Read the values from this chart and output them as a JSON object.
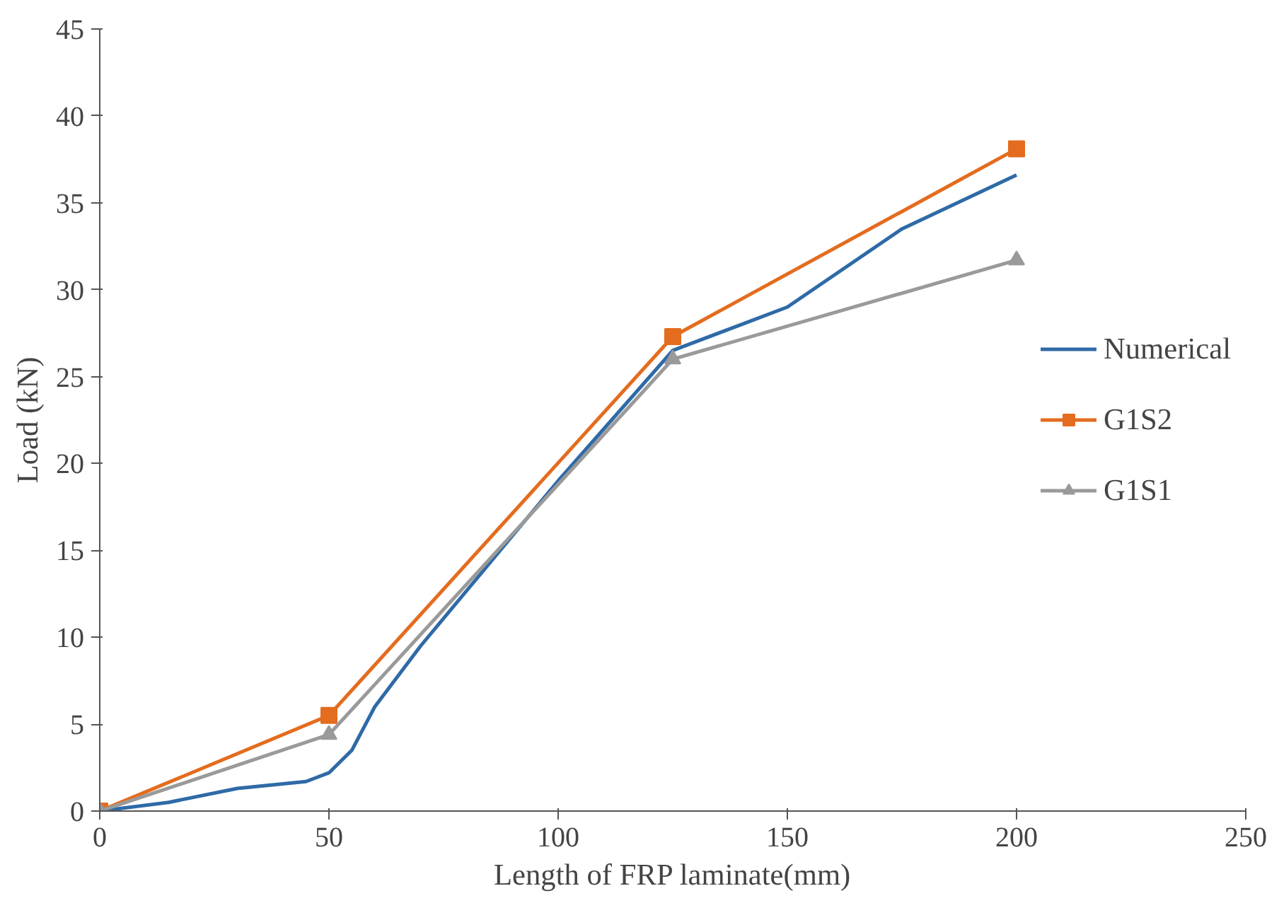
{
  "chart_data": {
    "type": "line",
    "xlabel": "Length of FRP laminate(mm)",
    "ylabel": "Load (kN)",
    "xlim": [
      0,
      250
    ],
    "xticks": [
      0,
      50,
      100,
      150,
      200,
      250
    ],
    "ylim": [
      0,
      45
    ],
    "yticks": [
      0,
      5,
      10,
      15,
      20,
      25,
      30,
      35,
      40,
      45
    ],
    "grid": false,
    "legend": "right",
    "line_style": "solid",
    "series": [
      {
        "name": "Numerical",
        "color": "#2e6aa6",
        "marker": "none",
        "x": [
          0,
          15,
          30,
          45,
          50,
          55,
          60,
          70,
          100,
          125,
          140,
          150,
          175,
          200
        ],
        "values": [
          0,
          0.5,
          1.3,
          1.7,
          2.2,
          3.5,
          6,
          9.5,
          19,
          26.5,
          28,
          29,
          33.5,
          36.6
        ]
      },
      {
        "name": "G1S2",
        "color": "#e46c1f",
        "marker": "square",
        "x": [
          0,
          50,
          125,
          200
        ],
        "values": [
          0,
          5.5,
          27.3,
          38.1
        ]
      },
      {
        "name": "G1S1",
        "color": "#9a9a9a",
        "marker": "triangle",
        "x": [
          0,
          50,
          125,
          200
        ],
        "values": [
          0,
          4.4,
          26,
          31.7
        ]
      }
    ]
  }
}
